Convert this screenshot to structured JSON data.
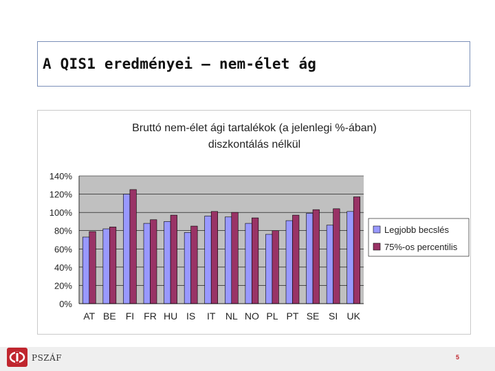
{
  "slide": {
    "title": "A QIS1 eredményei – nem-élet ág",
    "logo_text": "PSZÁF",
    "page_number": "5"
  },
  "colors": {
    "best_estimate": "#9999ff",
    "percentile": "#993366",
    "plot_background": "#c0c0c0"
  },
  "chart_data": {
    "type": "bar",
    "title": "Bruttó nem-élet ági tartalékok (a jelenlegi %-ában)",
    "subtitle": "diszkontálás nélkül",
    "categories": [
      "AT",
      "BE",
      "FI",
      "FR",
      "HU",
      "IS",
      "IT",
      "NL",
      "NO",
      "PL",
      "PT",
      "SE",
      "SI",
      "UK"
    ],
    "series": [
      {
        "name": "Legjobb becslés",
        "values": [
          73,
          82,
          120,
          88,
          90,
          78,
          96,
          95,
          88,
          76,
          91,
          99,
          86,
          101
        ]
      },
      {
        "name": "75%-os percentilis",
        "values": [
          79,
          84,
          125,
          92,
          97,
          85,
          101,
          100,
          94,
          80,
          97,
          103,
          104,
          117
        ]
      }
    ],
    "yticks": [
      "0%",
      "20%",
      "40%",
      "60%",
      "80%",
      "100%",
      "120%",
      "140%"
    ],
    "ylim": [
      0,
      140
    ],
    "grid": true,
    "legend": "right"
  }
}
